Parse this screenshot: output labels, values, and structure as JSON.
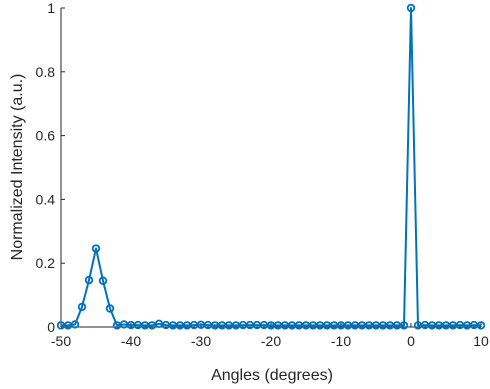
{
  "chart_data": {
    "type": "line",
    "xlabel": "Angles (degrees)",
    "ylabel": "Normalized Intensity (a.u.)",
    "xlim": [
      -50,
      10
    ],
    "ylim": [
      0,
      1
    ],
    "xticks": [
      -50,
      -40,
      -30,
      -20,
      -10,
      0,
      10
    ],
    "xtick_labels": [
      "-50",
      "-40",
      "-30",
      "-20",
      "-10",
      "0",
      "10"
    ],
    "yticks": [
      0,
      0.2,
      0.4,
      0.6,
      0.8,
      1
    ],
    "ytick_labels": [
      "0",
      "0.2",
      "0.4",
      "0.6",
      "0.8",
      "1"
    ],
    "grid": false,
    "series_color": "#0072BD",
    "marker": "circle",
    "series": [
      {
        "x": [
          -50,
          -49,
          -48,
          -47,
          -46,
          -45,
          -44,
          -43,
          -42,
          -41,
          -40,
          -39,
          -38,
          -37,
          -36,
          -35,
          -34,
          -33,
          -32,
          -31,
          -30,
          -29,
          -28,
          -27,
          -26,
          -25,
          -24,
          -23,
          -22,
          -21,
          -20,
          -19,
          -18,
          -17,
          -16,
          -15,
          -14,
          -13,
          -12,
          -11,
          -10,
          -9,
          -8,
          -7,
          -6,
          -5,
          -4,
          -3,
          -2,
          -1,
          0,
          1,
          2,
          3,
          4,
          5,
          6,
          7,
          8,
          9,
          10
        ],
        "y": [
          0.005,
          0.005,
          0.008,
          0.063,
          0.147,
          0.246,
          0.145,
          0.058,
          0.005,
          0.008,
          0.006,
          0.006,
          0.005,
          0.005,
          0.01,
          0.006,
          0.005,
          0.005,
          0.005,
          0.006,
          0.007,
          0.006,
          0.005,
          0.005,
          0.005,
          0.005,
          0.006,
          0.006,
          0.006,
          0.006,
          0.005,
          0.005,
          0.005,
          0.005,
          0.005,
          0.005,
          0.005,
          0.005,
          0.005,
          0.005,
          0.005,
          0.005,
          0.005,
          0.005,
          0.005,
          0.005,
          0.005,
          0.005,
          0.005,
          0.005,
          1.0,
          0.005,
          0.006,
          0.005,
          0.005,
          0.005,
          0.005,
          0.006,
          0.005,
          0.006,
          0.005
        ]
      }
    ]
  }
}
